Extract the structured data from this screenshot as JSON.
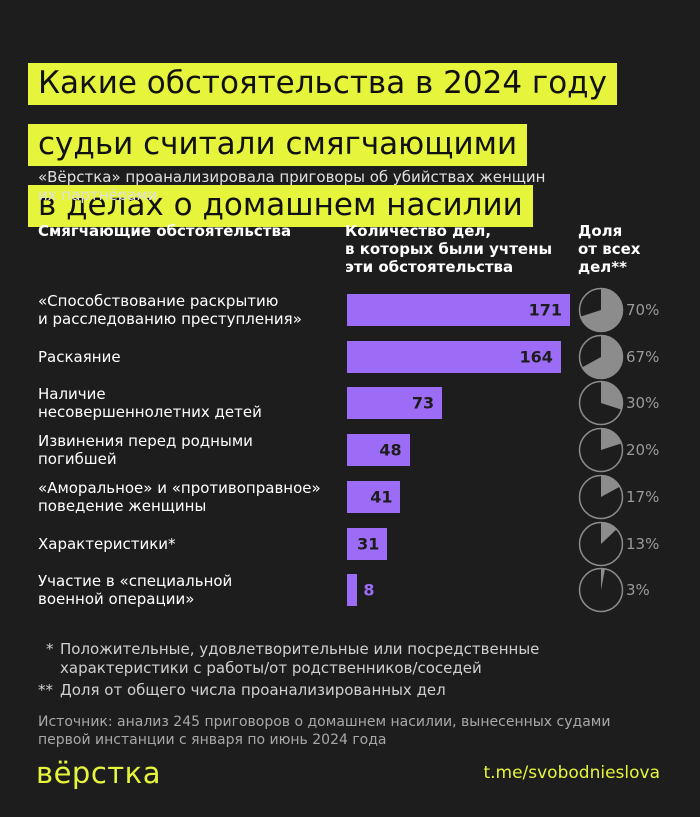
{
  "chart_data": {
    "type": "bar",
    "title": [
      "Какие обстоятельства в 2024 году",
      "судьи считали смягчающими",
      "в делах о домашнем насилии"
    ],
    "subtitle": "«Вёрстка» проанализировала приговоры об убийствах женщин\nих партнёрами",
    "category_label": "Смягчающие обстоятельства",
    "categories": [
      "«Способствование раскрытию\nи расследованию преступления»",
      "Раскаяние",
      "Наличие\nнесовершеннолетних детей",
      "Извинения перед родными\nпогибшей",
      "«Аморальное» и «противоправное»\nповедение женщины",
      "Характеристики*",
      "Участие в «специальной\nвоенной операции»"
    ],
    "series": [
      {
        "name": "Количество дел,\nв которых были учтены\nэти обстоятельства",
        "color": "#9d6cf6",
        "values": [
          171,
          164,
          73,
          48,
          41,
          31,
          8
        ]
      },
      {
        "name": "Доля\nот всех\nдел**",
        "type": "pie",
        "color": "#8c8c8c",
        "values": [
          70,
          67,
          30,
          20,
          17,
          13,
          3
        ],
        "value_labels": [
          "70%",
          "67%",
          "30%",
          "20%",
          "17%",
          "13%",
          "3%"
        ]
      }
    ],
    "footnotes": [
      {
        "mark": "*",
        "text": "Положительные, удовлетворительные или посредственные\nхарактеристики с работы/от родственников/соседей"
      },
      {
        "mark": "**",
        "text": "Доля от общего числа проанализированных дел"
      }
    ],
    "source": "Источник: анализ 245 приговоров о домашнем насилии, вынесенных судами\nпервой инстанции с января по июнь 2024 года",
    "logo": "вёрстка",
    "link": "t.me/svobodnieslova"
  }
}
